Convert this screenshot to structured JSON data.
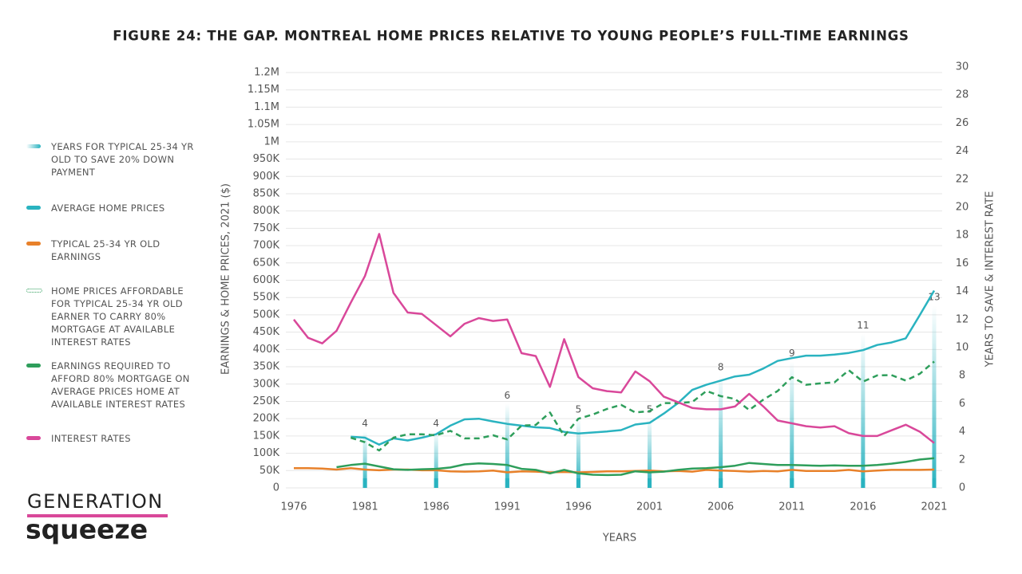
{
  "chart_data": {
    "type": "line",
    "title": "FIGURE 24: THE GAP. MONTREAL HOME PRICES RELATIVE TO YOUNG PEOPLE’S FULL-TIME EARNINGS",
    "x_label": "YEARS",
    "y_label": "EARNINGS & HOME PRICES, 2021 ($)",
    "y2_label": "YEARS TO SAVE & INTEREST RATE",
    "x": [
      1976,
      1977,
      1978,
      1979,
      1980,
      1981,
      1982,
      1983,
      1984,
      1985,
      1986,
      1987,
      1988,
      1989,
      1990,
      1991,
      1992,
      1993,
      1994,
      1995,
      1996,
      1997,
      1998,
      1999,
      2000,
      2001,
      2002,
      2003,
      2004,
      2005,
      2006,
      2007,
      2008,
      2009,
      2010,
      2011,
      2012,
      2013,
      2014,
      2015,
      2016,
      2017,
      2018,
      2019,
      2020,
      2021
    ],
    "xlim": [
      1976,
      2021
    ],
    "xticks": [
      1976,
      1981,
      1986,
      1991,
      1996,
      2001,
      2006,
      2011,
      2016,
      2021
    ],
    "ylim": [
      0,
      1200000
    ],
    "yticks": [
      0,
      {
        "value": 50000,
        "label": "50K"
      },
      {
        "value": 100000,
        "label": "100K"
      },
      {
        "value": 150000,
        "label": "150K"
      },
      {
        "value": 200000,
        "label": "200K"
      },
      {
        "value": 250000,
        "label": "250K"
      },
      {
        "value": 300000,
        "label": "300K"
      },
      {
        "value": 350000,
        "label": "350K"
      },
      {
        "value": 400000,
        "label": "400K"
      },
      {
        "value": 450000,
        "label": "450K"
      },
      {
        "value": 500000,
        "label": "500K"
      },
      {
        "value": 550000,
        "label": "550K"
      },
      {
        "value": 600000,
        "label": "600K"
      },
      {
        "value": 650000,
        "label": "650K"
      },
      {
        "value": 700000,
        "label": "700K"
      },
      {
        "value": 750000,
        "label": "750K"
      },
      {
        "value": 800000,
        "label": "800K"
      },
      {
        "value": 850000,
        "label": "850K"
      },
      {
        "value": 900000,
        "label": "900K"
      },
      {
        "value": 950000,
        "label": "950K"
      },
      {
        "value": 1000000,
        "label": "1M"
      },
      {
        "value": 1050000,
        "label": "1.05M"
      },
      {
        "value": 1100000,
        "label": "1.1M"
      },
      {
        "value": 1150000,
        "label": "1.15M"
      },
      {
        "value": 1200000,
        "label": "1.2M"
      }
    ],
    "y2lim": [
      0,
      30
    ],
    "y2ticks": [
      0,
      2,
      4,
      6,
      8,
      10,
      12,
      14,
      16,
      18,
      20,
      22,
      24,
      26,
      28,
      30
    ],
    "grid": true,
    "series": [
      {
        "name": "YEARS FOR TYPICAL 25-34 YR OLD TO SAVE 20% DOWN PAYMENT",
        "kind": "bar",
        "axis": "y2",
        "color": "#2ab3c0",
        "values": [
          null,
          null,
          null,
          null,
          null,
          4,
          null,
          null,
          null,
          null,
          4,
          null,
          null,
          null,
          null,
          6,
          null,
          null,
          null,
          null,
          5,
          null,
          null,
          null,
          null,
          5,
          null,
          null,
          null,
          null,
          8,
          null,
          null,
          null,
          null,
          9,
          null,
          null,
          null,
          null,
          11,
          null,
          null,
          null,
          null,
          13
        ]
      },
      {
        "name": "AVERAGE HOME PRICES",
        "color": "#2ab3c0",
        "values": [
          null,
          null,
          null,
          null,
          148000,
          145000,
          125000,
          143000,
          137000,
          145000,
          155000,
          180000,
          198000,
          200000,
          192000,
          185000,
          180000,
          175000,
          173000,
          162000,
          157000,
          160000,
          163000,
          167000,
          183000,
          188000,
          215000,
          245000,
          283000,
          298000,
          310000,
          322000,
          327000,
          345000,
          367000,
          375000,
          382000,
          382000,
          385000,
          390000,
          398000,
          413000,
          420000,
          432000,
          500000,
          570000
        ]
      },
      {
        "name": "TYPICAL 25-34 YR OLD EARNINGS",
        "color": "#e8812a",
        "values": [
          57000,
          57000,
          56000,
          53000,
          57000,
          53000,
          51000,
          53000,
          53000,
          51000,
          51000,
          48000,
          47000,
          48000,
          50000,
          45000,
          48000,
          47000,
          45000,
          46000,
          45000,
          46000,
          48000,
          48000,
          49000,
          50000,
          48000,
          49000,
          47000,
          52000,
          50000,
          49000,
          47000,
          49000,
          48000,
          52000,
          49000,
          49000,
          49000,
          52000,
          48000,
          50000,
          52000,
          52000,
          52000,
          53000
        ]
      },
      {
        "name": "HOME PRICES AFFORDABLE FOR TYPICAL 25-34 YR OLD EARNER TO CARRY 80% MORTGAGE AT AVAILABLE INTEREST RATES",
        "dash": true,
        "color": "#2e9e5b",
        "values": [
          null,
          null,
          null,
          null,
          145000,
          132000,
          108000,
          145000,
          155000,
          155000,
          152000,
          165000,
          143000,
          143000,
          152000,
          140000,
          180000,
          182000,
          218000,
          150000,
          200000,
          212000,
          228000,
          240000,
          218000,
          222000,
          245000,
          245000,
          248000,
          280000,
          265000,
          257000,
          225000,
          255000,
          280000,
          320000,
          298000,
          302000,
          305000,
          340000,
          307000,
          325000,
          326000,
          310000,
          330000,
          365000
        ]
      },
      {
        "name": "EARNINGS REQUIRED TO AFFORD 80% MORTGAGE ON AVERAGE PRICES HOME AT AVAILABLE INTEREST RATES",
        "color": "#2e9e5b",
        "values": [
          null,
          null,
          null,
          60000,
          66000,
          70000,
          62000,
          54000,
          52000,
          54000,
          55000,
          59000,
          68000,
          71000,
          69000,
          66000,
          55000,
          52000,
          42000,
          52000,
          42000,
          38000,
          37000,
          38000,
          48000,
          45000,
          47000,
          52000,
          56000,
          57000,
          60000,
          64000,
          72000,
          69000,
          66000,
          66000,
          65000,
          64000,
          65000,
          64000,
          64000,
          66000,
          70000,
          75000,
          82000,
          86000
        ]
      },
      {
        "name": "INTEREST RATES",
        "axis": "y2",
        "color": "#d9489a",
        "values": [
          12,
          10.7,
          10.3,
          11.2,
          13.2,
          15.1,
          18.1,
          13.9,
          12.5,
          12.4,
          11.6,
          10.8,
          11.7,
          12.1,
          11.9,
          12,
          9.6,
          9.4,
          7.2,
          10.6,
          7.9,
          7.1,
          6.9,
          6.8,
          8.3,
          7.6,
          6.5,
          6.1,
          5.7,
          5.6,
          5.6,
          5.8,
          6.7,
          5.8,
          4.8,
          4.6,
          4.4,
          4.3,
          4.4,
          3.9,
          3.7,
          3.7,
          4.1,
          4.5,
          4,
          3.2
        ]
      }
    ]
  },
  "logo": {
    "line1": "GENERATION",
    "line2": "squeeze"
  }
}
